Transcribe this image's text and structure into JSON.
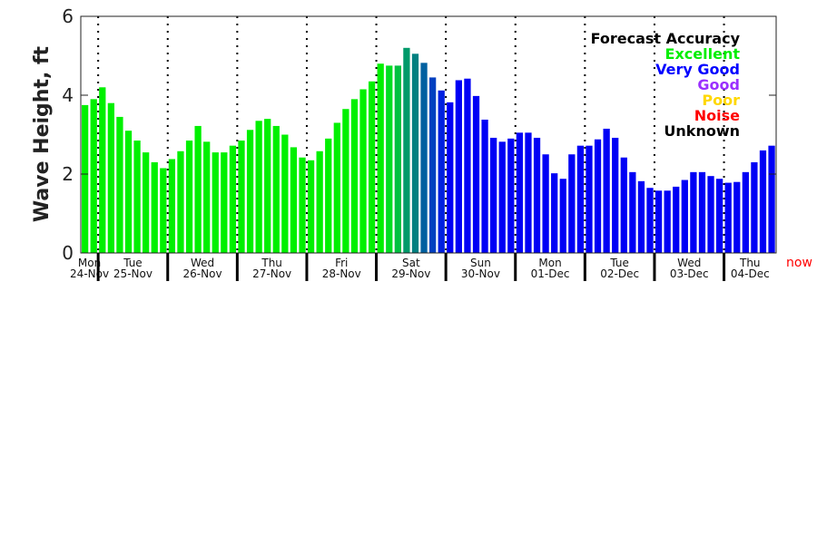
{
  "chart_data": {
    "type": "bar",
    "title": "",
    "ylabel": "Wave Height, ft",
    "xlabel": "",
    "ylim": [
      0,
      6
    ],
    "yticks": [
      "0",
      "2",
      "4",
      "6"
    ],
    "interval_hours": 3,
    "days": [
      {
        "dow": "Mon",
        "date": "24-Nov",
        "bars": 2
      },
      {
        "dow": "Tue",
        "date": "25-Nov",
        "bars": 8
      },
      {
        "dow": "Wed",
        "date": "26-Nov",
        "bars": 8
      },
      {
        "dow": "Thu",
        "date": "27-Nov",
        "bars": 8
      },
      {
        "dow": "Fri",
        "date": "28-Nov",
        "bars": 8
      },
      {
        "dow": "Sat",
        "date": "29-Nov",
        "bars": 8
      },
      {
        "dow": "Sun",
        "date": "30-Nov",
        "bars": 8
      },
      {
        "dow": "Mon",
        "date": "01-Dec",
        "bars": 8
      },
      {
        "dow": "Tue",
        "date": "02-Dec",
        "bars": 8
      },
      {
        "dow": "Wed",
        "date": "03-Dec",
        "bars": 8
      },
      {
        "dow": "Thu",
        "date": "04-Dec",
        "bars": 6
      }
    ],
    "values": [
      3.75,
      3.9,
      4.2,
      3.8,
      3.45,
      3.1,
      2.85,
      2.55,
      2.3,
      2.15,
      2.38,
      2.58,
      2.85,
      3.22,
      2.82,
      2.55,
      2.55,
      2.72,
      2.85,
      3.12,
      3.35,
      3.4,
      3.22,
      3.0,
      2.68,
      2.42,
      2.35,
      2.58,
      2.9,
      3.3,
      3.65,
      3.9,
      4.15,
      4.35,
      4.8,
      4.75,
      4.75,
      5.2,
      5.05,
      4.82,
      4.45,
      4.12,
      3.82,
      4.38,
      4.42,
      3.98,
      3.38,
      2.92,
      2.82,
      2.9,
      3.05,
      3.05,
      2.92,
      2.5,
      2.02,
      1.88,
      2.5,
      2.72,
      2.72,
      2.88,
      3.15,
      2.92,
      2.42,
      2.05,
      1.82,
      1.65,
      1.58,
      1.58,
      1.68,
      1.85,
      2.05,
      2.05,
      1.95,
      1.88,
      1.78,
      1.8,
      2.05,
      2.3,
      2.6,
      2.72
    ],
    "bar_colors": {
      "default_before": "#00f000",
      "default_after": "#0000f5",
      "transition_start_index": 34,
      "transition": [
        "#00f000",
        "#00dd22",
        "#00c040",
        "#009a6a",
        "#008080",
        "#0060a0",
        "#0040c0",
        "#0020e0"
      ]
    },
    "now_label": "now",
    "now_color": "#ff0000",
    "legend": {
      "position": "top-right",
      "title": "Forecast Accuracy",
      "entries": [
        {
          "label": "Excellent",
          "color": "#00ee00"
        },
        {
          "label": "Very Good",
          "color": "#0000ff"
        },
        {
          "label": "Good",
          "color": "#9b30ff"
        },
        {
          "label": "Poor",
          "color": "#ffd700"
        },
        {
          "label": "Noise",
          "color": "#ff0000"
        },
        {
          "label": "Unknown",
          "color": "#000000"
        }
      ]
    }
  }
}
